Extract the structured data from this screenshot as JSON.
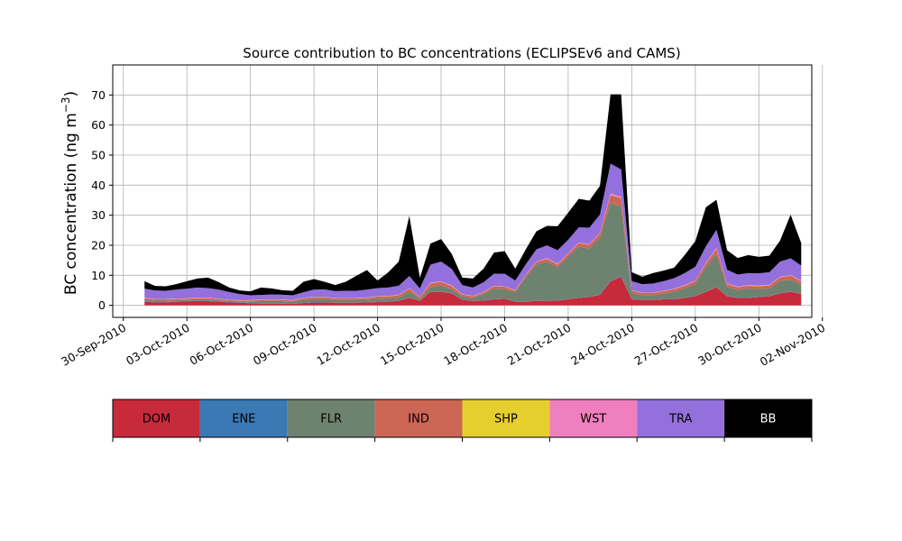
{
  "chart_data": {
    "type": "area",
    "title": "Source contribution to BC concentrations (ECLIPSEv6 and CAMS)",
    "xlabel": "",
    "ylabel": "BC concentration (ng m",
    "ylabel_superscript": "−3",
    "ylabel_close": ")",
    "xlim": [
      -0.5,
      32.5
    ],
    "ylim": [
      -4,
      80
    ],
    "x_ticks": [
      {
        "value": 0,
        "label": "30-Sep-2010"
      },
      {
        "value": 3,
        "label": "03-Oct-2010"
      },
      {
        "value": 6,
        "label": "06-Oct-2010"
      },
      {
        "value": 9,
        "label": "09-Oct-2010"
      },
      {
        "value": 12,
        "label": "12-Oct-2010"
      },
      {
        "value": 15,
        "label": "15-Oct-2010"
      },
      {
        "value": 18,
        "label": "18-Oct-2010"
      },
      {
        "value": 21,
        "label": "21-Oct-2010"
      },
      {
        "value": 24,
        "label": "24-Oct-2010"
      },
      {
        "value": 27,
        "label": "27-Oct-2010"
      },
      {
        "value": 30,
        "label": "30-Oct-2010"
      },
      {
        "value": 33,
        "label": "02-Nov-2010"
      }
    ],
    "y_ticks": [
      0,
      10,
      20,
      30,
      40,
      50,
      60,
      70
    ],
    "grid": true,
    "x_unit": "days since 30-Sep-2010",
    "x": [
      1.0,
      1.5,
      2.0,
      2.5,
      3.0,
      3.5,
      4.0,
      4.5,
      5.0,
      5.5,
      6.0,
      6.5,
      7.0,
      7.5,
      8.0,
      8.5,
      9.0,
      9.5,
      10.0,
      10.5,
      11.0,
      11.5,
      12.0,
      12.5,
      13.0,
      13.5,
      14.0,
      14.5,
      15.0,
      15.5,
      16.0,
      16.5,
      17.0,
      17.5,
      18.0,
      18.5,
      19.0,
      19.5,
      20.0,
      20.5,
      21.0,
      21.5,
      22.0,
      22.5,
      23.0,
      23.5,
      24.0,
      24.5,
      25.0,
      25.5,
      26.0,
      26.5,
      27.0,
      27.5,
      28.0,
      28.5,
      29.0,
      29.5,
      30.0,
      30.5,
      31.0,
      31.5,
      32.0
    ],
    "series": [
      {
        "name": "DOM",
        "color": "#c72a3a",
        "values": [
          1.2,
          1.0,
          1.0,
          1.2,
          1.3,
          1.5,
          1.4,
          1.2,
          1.0,
          0.9,
          0.7,
          0.6,
          0.6,
          0.6,
          0.5,
          0.8,
          1.0,
          1.0,
          0.9,
          0.9,
          0.9,
          1.0,
          1.1,
          1.2,
          1.5,
          2.5,
          1.5,
          4.5,
          4.5,
          4.0,
          1.8,
          1.5,
          1.6,
          2.0,
          2.2,
          1.2,
          1.2,
          1.5,
          1.5,
          1.6,
          2.0,
          2.5,
          2.8,
          3.5,
          8.0,
          9.5,
          2.0,
          1.8,
          1.8,
          2.0,
          2.0,
          2.5,
          3.0,
          4.5,
          6.0,
          3.0,
          2.5,
          2.5,
          2.8,
          3.0,
          4.0,
          4.5,
          3.8
        ]
      },
      {
        "name": "ENE",
        "color": "#3a79b3",
        "values": [
          0.1,
          0.1,
          0.1,
          0.1,
          0.1,
          0.1,
          0.1,
          0.1,
          0.1,
          0.1,
          0.1,
          0.1,
          0.1,
          0.1,
          0.1,
          0.1,
          0.1,
          0.1,
          0.1,
          0.1,
          0.1,
          0.1,
          0.1,
          0.1,
          0.1,
          0.1,
          0.1,
          0.1,
          0.1,
          0.1,
          0.1,
          0.1,
          0.1,
          0.1,
          0.1,
          0.1,
          0.1,
          0.1,
          0.1,
          0.1,
          0.1,
          0.1,
          0.1,
          0.1,
          0.2,
          0.2,
          0.1,
          0.1,
          0.1,
          0.1,
          0.1,
          0.1,
          0.1,
          0.1,
          0.1,
          0.1,
          0.1,
          0.1,
          0.1,
          0.1,
          0.1,
          0.1,
          0.1
        ]
      },
      {
        "name": "FLR",
        "color": "#6e8270",
        "values": [
          0.6,
          0.5,
          0.5,
          0.4,
          0.4,
          0.5,
          0.5,
          0.4,
          0.3,
          0.3,
          0.5,
          0.7,
          0.8,
          0.7,
          0.6,
          1.0,
          1.0,
          1.0,
          0.8,
          0.8,
          0.8,
          0.8,
          1.0,
          1.0,
          1.0,
          2.0,
          0.5,
          1.5,
          2.0,
          1.2,
          1.0,
          0.8,
          2.0,
          3.5,
          3.0,
          3.0,
          8.0,
          12.0,
          13.0,
          11.0,
          14.0,
          17.0,
          16.0,
          19.0,
          26.0,
          23.0,
          2.0,
          1.5,
          1.5,
          1.8,
          2.5,
          3.0,
          4.0,
          8.0,
          11.0,
          3.0,
          2.5,
          3.0,
          2.5,
          2.5,
          4.0,
          4.0,
          3.0
        ]
      },
      {
        "name": "IND",
        "color": "#cc6655",
        "values": [
          0.5,
          0.4,
          0.4,
          0.4,
          0.4,
          0.4,
          0.4,
          0.4,
          0.3,
          0.3,
          0.3,
          0.4,
          0.4,
          0.4,
          0.4,
          0.5,
          0.6,
          0.6,
          0.5,
          0.5,
          0.5,
          0.6,
          0.7,
          0.7,
          0.8,
          1.0,
          0.6,
          1.2,
          1.2,
          1.1,
          0.7,
          0.6,
          0.6,
          0.8,
          0.9,
          0.6,
          0.7,
          0.8,
          0.9,
          0.9,
          1.0,
          1.1,
          1.2,
          1.4,
          2.5,
          3.0,
          0.8,
          0.7,
          0.7,
          0.8,
          0.8,
          0.9,
          1.0,
          1.3,
          1.7,
          1.0,
          0.9,
          0.9,
          1.0,
          1.0,
          1.2,
          1.3,
          1.1
        ]
      },
      {
        "name": "SHP",
        "color": "#e6ce2e",
        "values": [
          0.05,
          0.05,
          0.05,
          0.05,
          0.05,
          0.05,
          0.05,
          0.05,
          0.05,
          0.05,
          0.05,
          0.05,
          0.05,
          0.05,
          0.05,
          0.05,
          0.05,
          0.05,
          0.05,
          0.05,
          0.05,
          0.05,
          0.05,
          0.05,
          0.05,
          0.05,
          0.05,
          0.05,
          0.05,
          0.05,
          0.05,
          0.05,
          0.05,
          0.05,
          0.05,
          0.05,
          0.05,
          0.05,
          0.05,
          0.05,
          0.05,
          0.05,
          0.05,
          0.05,
          0.1,
          0.1,
          0.05,
          0.05,
          0.05,
          0.05,
          0.05,
          0.05,
          0.05,
          0.05,
          0.05,
          0.05,
          0.05,
          0.05,
          0.05,
          0.05,
          0.05,
          0.05,
          0.05
        ]
      },
      {
        "name": "WST",
        "color": "#ef7fbf",
        "values": [
          0.1,
          0.1,
          0.1,
          0.1,
          0.1,
          0.1,
          0.1,
          0.1,
          0.1,
          0.1,
          0.1,
          0.1,
          0.1,
          0.1,
          0.1,
          0.1,
          0.1,
          0.1,
          0.1,
          0.1,
          0.1,
          0.1,
          0.1,
          0.1,
          0.1,
          0.1,
          0.1,
          0.2,
          0.2,
          0.2,
          0.1,
          0.1,
          0.1,
          0.1,
          0.1,
          0.1,
          0.1,
          0.2,
          0.2,
          0.2,
          0.2,
          0.2,
          0.2,
          0.2,
          0.4,
          0.4,
          0.1,
          0.1,
          0.1,
          0.1,
          0.1,
          0.2,
          0.2,
          0.2,
          0.3,
          0.2,
          0.2,
          0.2,
          0.2,
          0.2,
          0.2,
          0.2,
          0.2
        ]
      },
      {
        "name": "TRA",
        "color": "#9370db",
        "values": [
          3.0,
          2.8,
          2.7,
          3.0,
          3.2,
          3.3,
          3.2,
          3.0,
          2.6,
          2.0,
          1.6,
          1.5,
          1.6,
          1.6,
          1.6,
          1.8,
          2.4,
          2.5,
          2.3,
          2.4,
          2.4,
          2.6,
          2.7,
          2.8,
          3.0,
          4.0,
          2.8,
          6.0,
          6.5,
          5.5,
          3.0,
          2.8,
          3.2,
          4.0,
          4.2,
          3.2,
          3.5,
          4.0,
          4.2,
          4.5,
          4.5,
          5.0,
          5.5,
          6.0,
          10.0,
          9.0,
          3.0,
          2.8,
          3.0,
          3.2,
          3.5,
          4.0,
          4.5,
          5.5,
          6.0,
          4.5,
          4.0,
          4.0,
          4.0,
          4.2,
          5.0,
          5.5,
          5.0
        ]
      },
      {
        "name": "BB",
        "color": "#000000",
        "values": [
          2.5,
          1.5,
          1.5,
          1.8,
          2.5,
          3.0,
          3.5,
          2.5,
          1.5,
          1.2,
          1.3,
          2.5,
          2.0,
          1.5,
          1.5,
          3.5,
          3.5,
          2.5,
          2.0,
          3.0,
          5.0,
          6.5,
          2.5,
          5.0,
          8.0,
          20.0,
          3.5,
          7.0,
          7.5,
          5.0,
          2.5,
          3.0,
          4.5,
          7.0,
          7.5,
          4.0,
          5.0,
          6.0,
          6.5,
          8.0,
          9.0,
          9.5,
          9.0,
          9.5,
          23.0,
          25.0,
          3.0,
          2.5,
          3.5,
          3.5,
          3.5,
          6.0,
          8.5,
          13.0,
          10.0,
          6.5,
          5.5,
          6.0,
          5.5,
          5.5,
          7.0,
          14.5,
          7.5
        ]
      }
    ],
    "legend": {
      "placement": "bottom",
      "entries": [
        {
          "label": "DOM",
          "color": "#c72a3a",
          "text_color": "#000000"
        },
        {
          "label": "ENE",
          "color": "#3a79b3",
          "text_color": "#000000"
        },
        {
          "label": "FLR",
          "color": "#6e8270",
          "text_color": "#000000"
        },
        {
          "label": "IND",
          "color": "#cc6655",
          "text_color": "#000000"
        },
        {
          "label": "SHP",
          "color": "#e6ce2e",
          "text_color": "#000000"
        },
        {
          "label": "WST",
          "color": "#ef7fbf",
          "text_color": "#000000"
        },
        {
          "label": "TRA",
          "color": "#9370db",
          "text_color": "#000000"
        },
        {
          "label": "BB",
          "color": "#000000",
          "text_color": "#ffffff"
        }
      ]
    }
  }
}
